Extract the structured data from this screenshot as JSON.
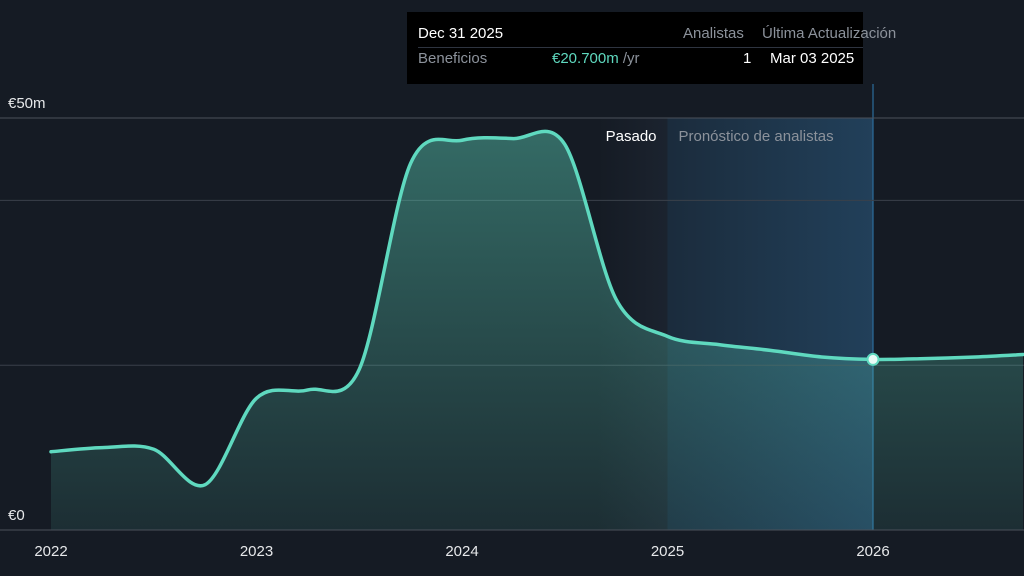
{
  "chart_data": {
    "type": "area",
    "x": [
      2022.0,
      2022.25,
      2022.5,
      2022.75,
      2023.0,
      2023.25,
      2023.5,
      2023.75,
      2024.0,
      2024.25,
      2024.5,
      2024.75,
      2025.0,
      2025.25,
      2025.5,
      2025.75,
      2026.0,
      2026.25,
      2026.5,
      2026.73
    ],
    "values": [
      9.5,
      10.0,
      9.8,
      5.5,
      16.0,
      17.0,
      19.5,
      44.5,
      47.3,
      47.5,
      46.8,
      28.0,
      23.5,
      22.5,
      21.8,
      21.0,
      20.7,
      20.8,
      21.0,
      21.3
    ],
    "ylim": [
      0,
      50
    ],
    "xlim": [
      2022,
      2026.73
    ],
    "y_tick_labels": [
      {
        "value": 50,
        "label": "€50m"
      },
      {
        "value": 0,
        "label": "€0"
      }
    ],
    "x_tick_labels": [
      {
        "value": 2022,
        "label": "2022"
      },
      {
        "value": 2023,
        "label": "2023"
      },
      {
        "value": 2024,
        "label": "2024"
      },
      {
        "value": 2025,
        "label": "2025"
      },
      {
        "value": 2026,
        "label": "2026"
      }
    ],
    "gridlines_y": [
      50,
      40,
      20,
      0
    ],
    "regions": {
      "past_label": "Pasado",
      "forecast_label": "Pronóstico de analistas",
      "forecast_start": 2025,
      "forecast_highlight_end": 2026
    },
    "marker": {
      "x": 2026,
      "y": 20.7
    },
    "colors": {
      "line": "#5fd9bf",
      "background": "#151b24",
      "forecast_band": "#2c5e86",
      "grid": "#3a404a",
      "axis_text": "#e6e8ea"
    }
  },
  "tooltip": {
    "date": "Dec 31 2025",
    "header_analysts": "Analistas",
    "header_updated": "Última Actualización",
    "metric": "Beneficios",
    "value": "€20.700m",
    "value_unit": " /yr",
    "analysts": "1",
    "updated": "Mar 03 2025"
  }
}
